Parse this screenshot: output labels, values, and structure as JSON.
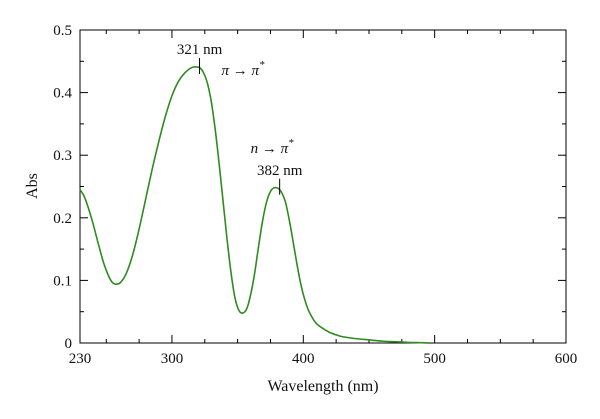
{
  "chart_data": {
    "type": "line",
    "title": "",
    "xlabel": "Wavelength (nm)",
    "ylabel": "Abs",
    "xlim": [
      230,
      600
    ],
    "ylim": [
      0,
      0.5
    ],
    "x_ticks": [
      230,
      300,
      400,
      500,
      600
    ],
    "x_minor_ticks": [
      250,
      275,
      325,
      350,
      375,
      425,
      450,
      475,
      525,
      550,
      575
    ],
    "y_ticks": [
      0,
      0.1,
      0.2,
      0.3,
      0.4,
      0.5
    ],
    "y_minor_ticks": [
      0.05,
      0.15,
      0.25,
      0.35,
      0.45
    ],
    "grid": false,
    "line_color": "#2e8b1e",
    "series": [
      {
        "x": [
          230,
          233,
          236,
          240,
          244,
          248,
          252,
          255,
          258,
          261,
          265,
          270,
          275,
          280,
          285,
          290,
          295,
          300,
          305,
          310,
          315,
          318,
          321,
          324,
          327,
          330,
          333,
          336,
          339,
          342,
          345,
          348,
          351,
          354,
          357,
          360,
          363,
          366,
          369,
          372,
          375,
          378,
          382,
          386,
          389,
          392,
          395,
          398,
          401,
          404,
          407,
          410,
          415,
          420,
          425,
          430,
          440,
          450,
          460,
          470,
          480,
          490,
          495
        ],
        "y": [
          0.245,
          0.235,
          0.218,
          0.19,
          0.158,
          0.128,
          0.106,
          0.096,
          0.094,
          0.097,
          0.11,
          0.14,
          0.182,
          0.23,
          0.278,
          0.322,
          0.362,
          0.395,
          0.418,
          0.432,
          0.44,
          0.441,
          0.44,
          0.432,
          0.415,
          0.385,
          0.34,
          0.285,
          0.225,
          0.165,
          0.112,
          0.072,
          0.052,
          0.048,
          0.055,
          0.078,
          0.112,
          0.155,
          0.195,
          0.225,
          0.242,
          0.248,
          0.245,
          0.228,
          0.2,
          0.165,
          0.128,
          0.095,
          0.07,
          0.052,
          0.04,
          0.031,
          0.023,
          0.017,
          0.013,
          0.01,
          0.007,
          0.005,
          0.003,
          0.002,
          0.001,
          0.0005,
          0.0
        ]
      }
    ],
    "annotations": [
      {
        "label": "321 nm",
        "x": 321,
        "y": 0.441
      },
      {
        "label": "382 nm",
        "x": 382,
        "y": 0.248
      }
    ],
    "transitions": [
      {
        "label": "π → π*",
        "base": "π → π",
        "sup": "*",
        "near_x": 321
      },
      {
        "label": "n → π*",
        "base": "n → π",
        "sup": "*",
        "near_x": 382
      }
    ]
  }
}
